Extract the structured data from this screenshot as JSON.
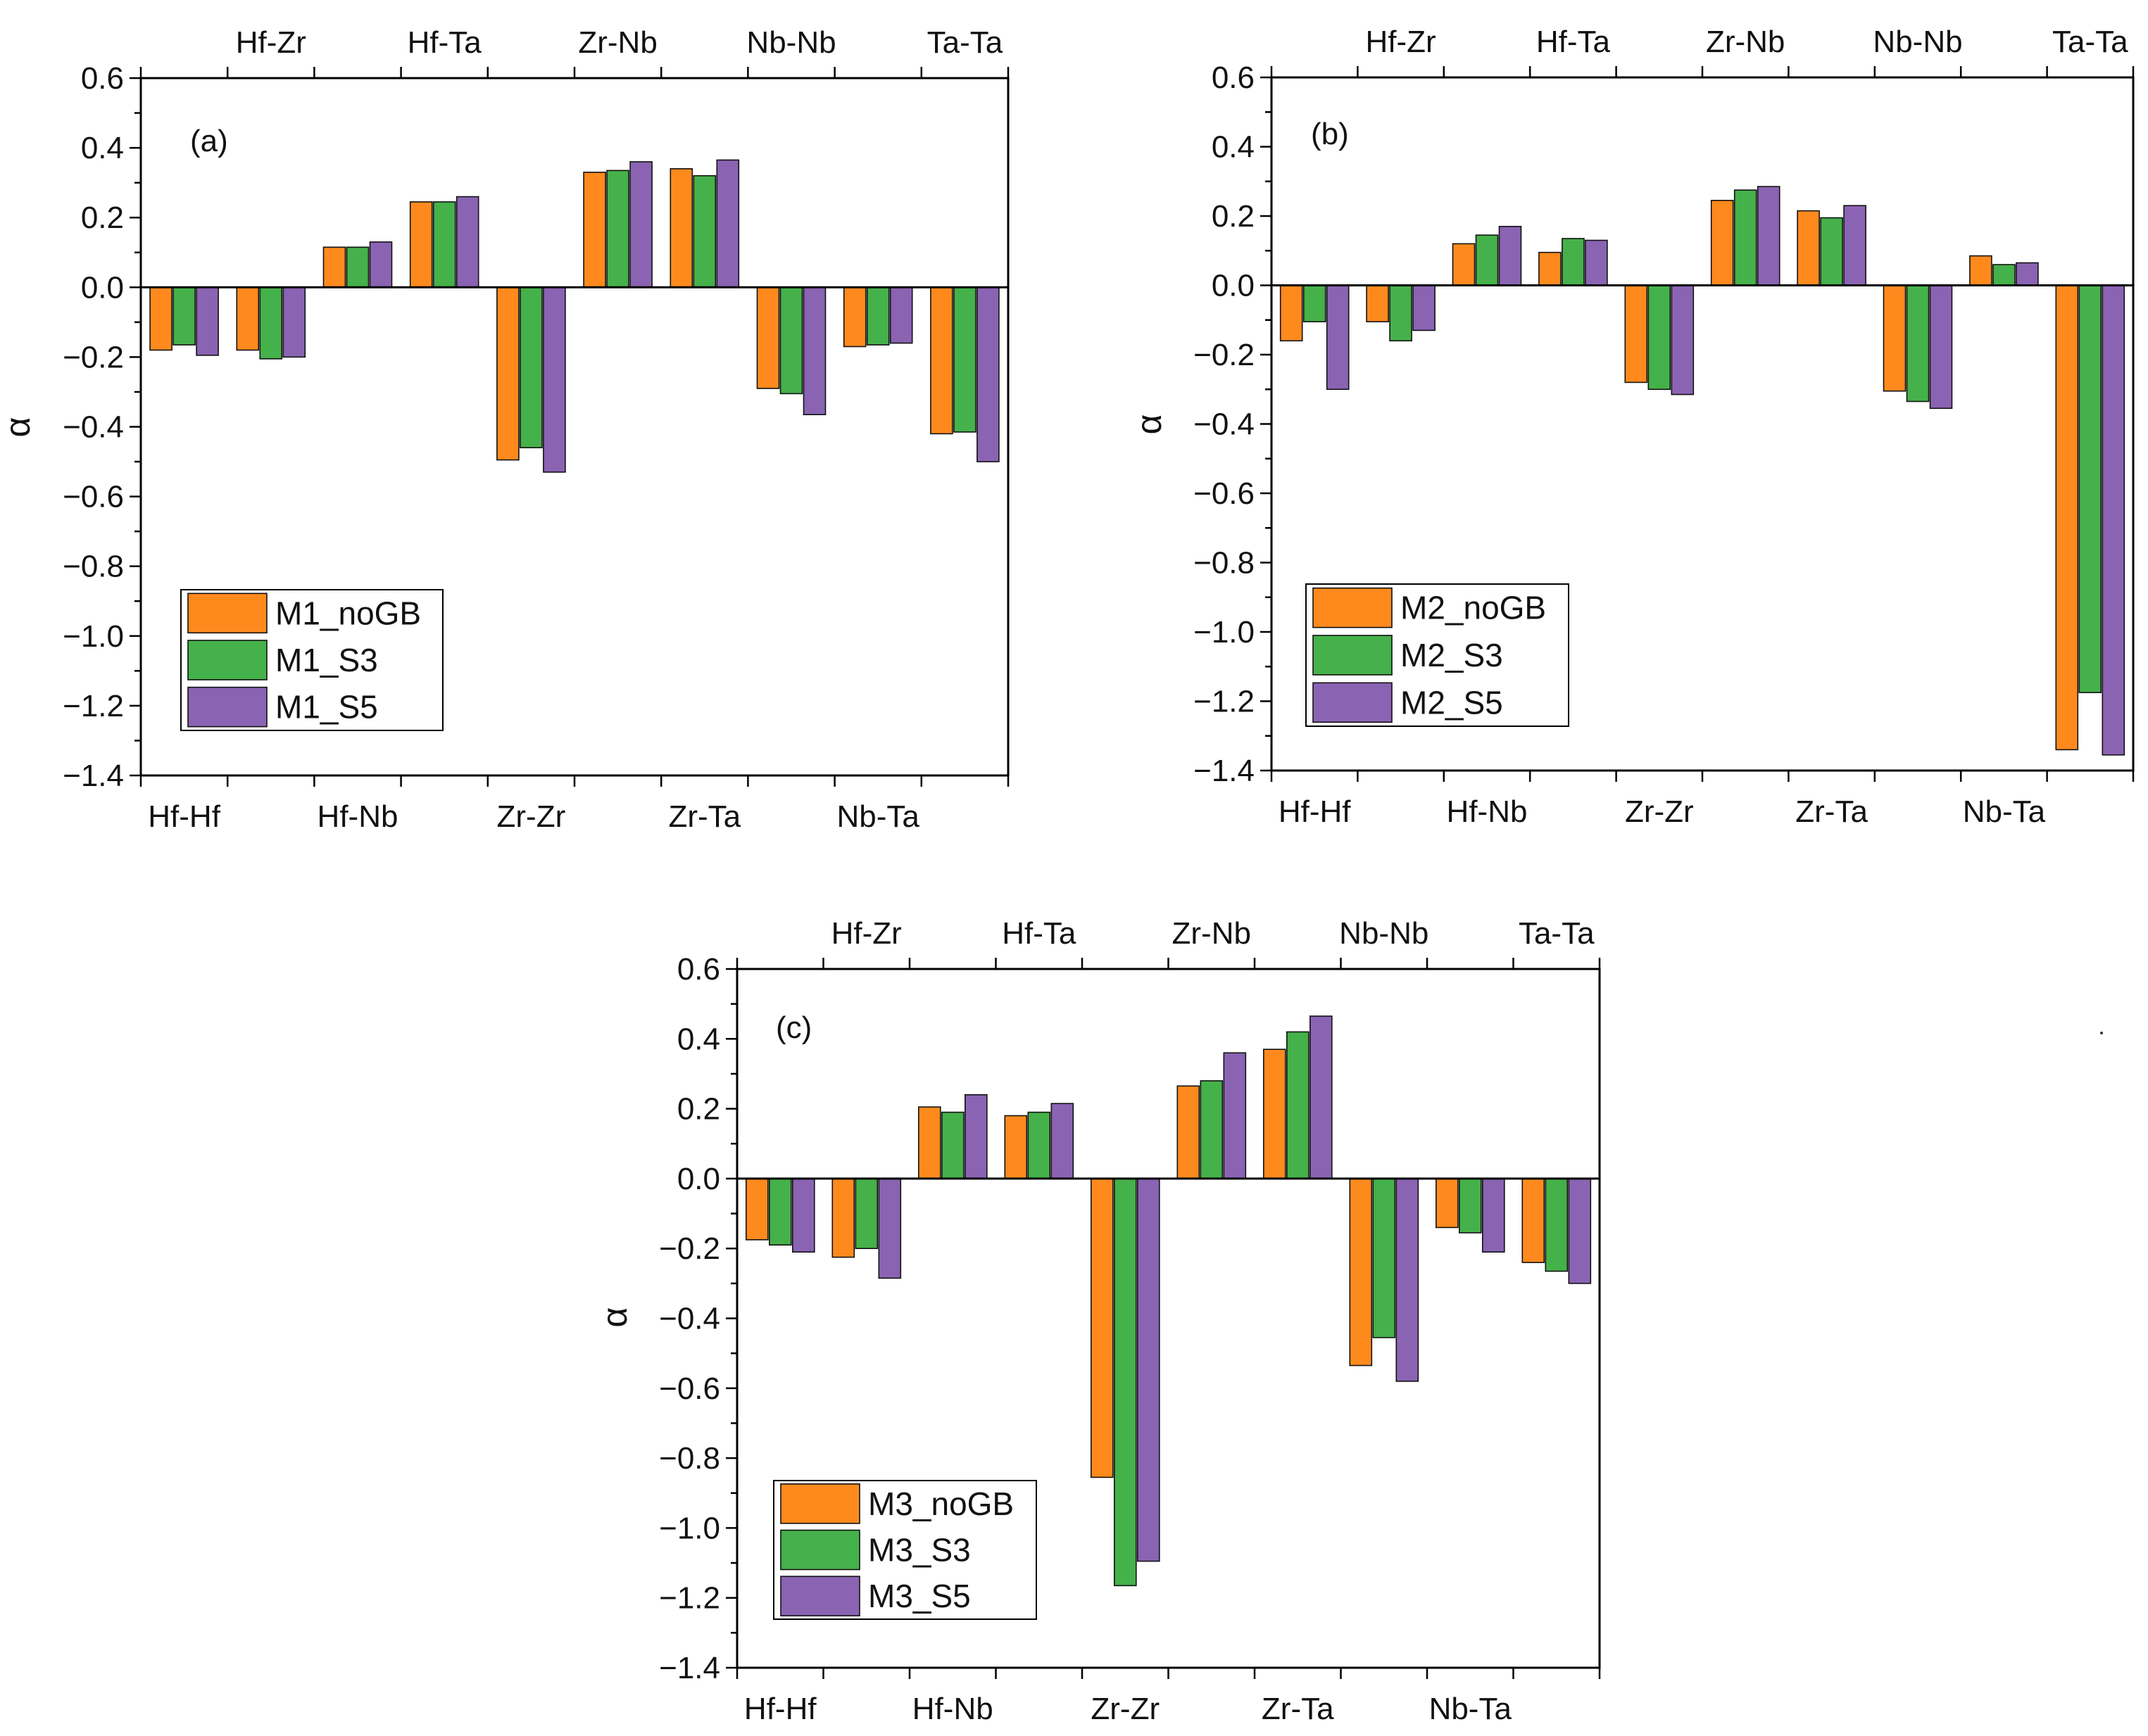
{
  "chart_data": [
    {
      "type": "bar",
      "panel_label": "(a)",
      "ylabel": "α",
      "ylim": [
        -1.4,
        0.6
      ],
      "yticks": [
        "0.6",
        "0.4",
        "0.2",
        "0.0",
        "−0.2",
        "−0.4",
        "−0.6",
        "−0.8",
        "−1.0",
        "−1.2",
        "−1.4"
      ],
      "categories": [
        "Hf-Hf",
        "Hf-Zr",
        "Hf-Nb",
        "Hf-Ta",
        "Zr-Zr",
        "Zr-Nb",
        "Zr-Ta",
        "Nb-Nb",
        "Nb-Ta",
        "Ta-Ta"
      ],
      "bottom_labels": [
        "Hf-Hf",
        "Hf-Nb",
        "Zr-Zr",
        "Zr-Ta",
        "Nb-Ta"
      ],
      "top_labels": [
        "Hf-Zr",
        "Hf-Ta",
        "Zr-Nb",
        "Nb-Nb",
        "Ta-Ta"
      ],
      "legend_position": "lower-left",
      "series": [
        {
          "name": "M1_noGB",
          "color": "#fe8a1e",
          "values": [
            -0.18,
            -0.18,
            0.115,
            0.245,
            -0.495,
            0.33,
            0.34,
            -0.29,
            -0.17,
            -0.42
          ]
        },
        {
          "name": "M1_S3",
          "color": "#45b14a",
          "values": [
            -0.165,
            -0.205,
            0.115,
            0.245,
            -0.46,
            0.335,
            0.32,
            -0.305,
            -0.165,
            -0.415
          ]
        },
        {
          "name": "M1_S5",
          "color": "#8a63b3",
          "values": [
            -0.195,
            -0.2,
            0.13,
            0.26,
            -0.53,
            0.36,
            0.365,
            -0.365,
            -0.16,
            -0.5
          ]
        }
      ]
    },
    {
      "type": "bar",
      "panel_label": "(b)",
      "ylabel": "α",
      "ylim": [
        -1.4,
        0.6
      ],
      "yticks": [
        "0.6",
        "0.4",
        "0.2",
        "0.0",
        "−0.2",
        "−0.4",
        "−0.6",
        "−0.8",
        "−1.0",
        "−1.2",
        "−1.4"
      ],
      "categories": [
        "Hf-Hf",
        "Hf-Zr",
        "Hf-Nb",
        "Hf-Ta",
        "Zr-Zr",
        "Zr-Nb",
        "Zr-Ta",
        "Nb-Nb",
        "Nb-Ta",
        "Ta-Ta"
      ],
      "bottom_labels": [
        "Hf-Hf",
        "Hf-Nb",
        "Zr-Zr",
        "Zr-Ta",
        "Nb-Ta"
      ],
      "top_labels": [
        "Hf-Zr",
        "Hf-Ta",
        "Zr-Nb",
        "Nb-Nb",
        "Ta-Ta"
      ],
      "legend_position": "lower-left",
      "series": [
        {
          "name": "M2_noGB",
          "color": "#fe8a1e",
          "values": [
            -0.16,
            -0.105,
            0.12,
            0.095,
            -0.28,
            0.245,
            0.215,
            -0.305,
            0.085,
            -1.34
          ]
        },
        {
          "name": "M2_S3",
          "color": "#45b14a",
          "values": [
            -0.105,
            -0.16,
            0.145,
            0.135,
            -0.3,
            0.275,
            0.195,
            -0.335,
            0.06,
            -1.175
          ]
        },
        {
          "name": "M2_S5",
          "color": "#8a63b3",
          "values": [
            -0.3,
            -0.13,
            0.17,
            0.13,
            -0.315,
            0.285,
            0.23,
            -0.355,
            0.065,
            -1.355
          ]
        }
      ]
    },
    {
      "type": "bar",
      "panel_label": "(c)",
      "ylabel": "α",
      "ylim": [
        -1.4,
        0.6
      ],
      "yticks": [
        "0.6",
        "0.4",
        "0.2",
        "0.0",
        "−0.2",
        "−0.4",
        "−0.6",
        "−0.8",
        "−1.0",
        "−1.2",
        "−1.4"
      ],
      "categories": [
        "Hf-Hf",
        "Hf-Zr",
        "Hf-Nb",
        "Hf-Ta",
        "Zr-Zr",
        "Zr-Nb",
        "Zr-Ta",
        "Nb-Nb",
        "Nb-Ta",
        "Ta-Ta"
      ],
      "bottom_labels": [
        "Hf-Hf",
        "Hf-Nb",
        "Zr-Zr",
        "Zr-Ta",
        "Nb-Ta"
      ],
      "top_labels": [
        "Hf-Zr",
        "Hf-Ta",
        "Zr-Nb",
        "Nb-Nb",
        "Ta-Ta"
      ],
      "legend_position": "lower-left",
      "series": [
        {
          "name": "M3_noGB",
          "color": "#fe8a1e",
          "values": [
            -0.175,
            -0.225,
            0.205,
            0.18,
            -0.855,
            0.265,
            0.37,
            -0.535,
            -0.14,
            -0.24
          ]
        },
        {
          "name": "M3_S3",
          "color": "#45b14a",
          "values": [
            -0.19,
            -0.2,
            0.19,
            0.19,
            -1.165,
            0.28,
            0.42,
            -0.455,
            -0.155,
            -0.265
          ]
        },
        {
          "name": "M3_S5",
          "color": "#8a63b3",
          "values": [
            -0.21,
            -0.285,
            0.24,
            0.215,
            -1.095,
            0.36,
            0.465,
            -0.58,
            -0.21,
            -0.3
          ]
        }
      ]
    }
  ]
}
